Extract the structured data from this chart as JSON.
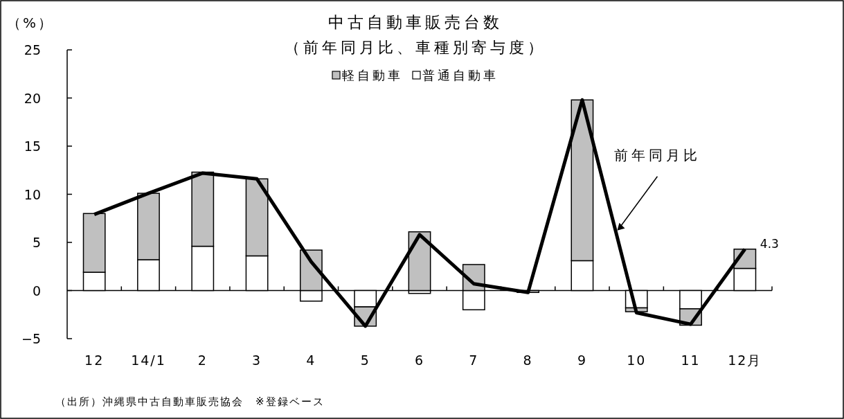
{
  "chart_data": {
    "type": "bar",
    "title": "中古自動車販売台数",
    "subtitle": "（前年同月比、車種別寄与度）",
    "ylabel": "（%）",
    "categories": [
      "12",
      "14/1",
      "2",
      "3",
      "4",
      "5",
      "6",
      "7",
      "8",
      "9",
      "10",
      "11",
      "12月"
    ],
    "stacked": true,
    "ylim": [
      -5,
      25
    ],
    "yticks": [
      -5,
      0,
      5,
      10,
      15,
      20,
      25
    ],
    "legend": "top",
    "series": [
      {
        "name": "普通自動車",
        "color": "#ffffff",
        "values": [
          1.9,
          3.2,
          4.6,
          3.6,
          -1.1,
          -1.7,
          -0.3,
          -2.0,
          0,
          3.1,
          -1.8,
          -1.9,
          2.3
        ]
      },
      {
        "name": "軽自動車",
        "color": "#c0c0c0",
        "values": [
          6.1,
          6.9,
          7.7,
          8.0,
          4.2,
          -2.0,
          6.1,
          2.7,
          -0.2,
          16.7,
          -0.4,
          -1.7,
          2.0
        ]
      },
      {
        "name": "前年同月比",
        "type": "line",
        "color": "#000000",
        "values": [
          7.9,
          10.1,
          12.2,
          11.6,
          3.0,
          -3.7,
          5.8,
          0.7,
          -0.2,
          19.8,
          -2.3,
          -3.5,
          4.3
        ],
        "value_labels": [
          null,
          null,
          null,
          null,
          null,
          null,
          null,
          null,
          null,
          null,
          null,
          null,
          "4.3"
        ]
      }
    ],
    "annotations": [
      "（出所）沖縄県中古自動車販売協会　※登録ベース"
    ]
  }
}
